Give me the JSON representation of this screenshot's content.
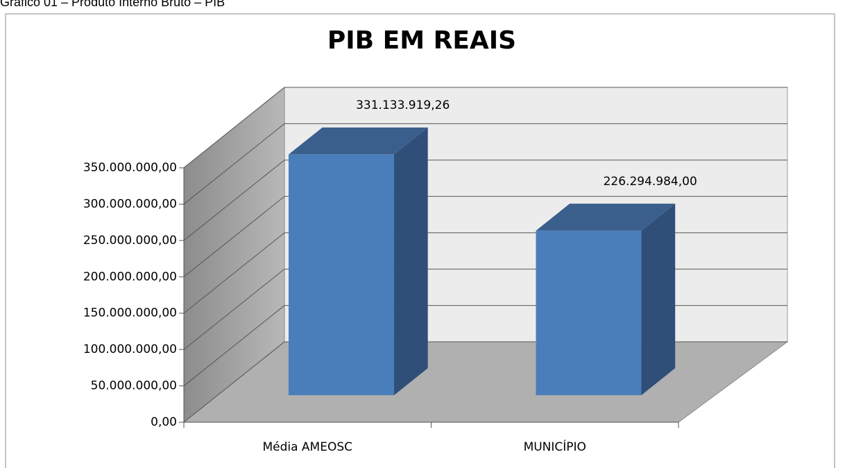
{
  "caption": "Gráfico 01 – Produto Interno Bruto – PIB",
  "chart_data": {
    "type": "bar3d",
    "title": "PIB EM REAIS",
    "categories": [
      "Média AMEOSC",
      "MUNICÍPIO"
    ],
    "values": [
      331133919.26,
      226294984
    ],
    "value_labels": [
      "331.133.919,26",
      "226.294.984,00"
    ],
    "color": "#4a7ebb",
    "ylim": [
      0,
      350000000
    ],
    "yticks": [
      {
        "value": 0,
        "label": "0,00"
      },
      {
        "value": 50000000,
        "label": "50.000.000,00"
      },
      {
        "value": 100000000,
        "label": "100.000.000,00"
      },
      {
        "value": 150000000,
        "label": "150.000.000,00"
      },
      {
        "value": 200000000,
        "label": "200.000.000,00"
      },
      {
        "value": 250000000,
        "label": "250.000.000,00"
      },
      {
        "value": 300000000,
        "label": "300.000.000,00"
      },
      {
        "value": 350000000,
        "label": "350.000.000,00"
      }
    ],
    "grid": true
  }
}
